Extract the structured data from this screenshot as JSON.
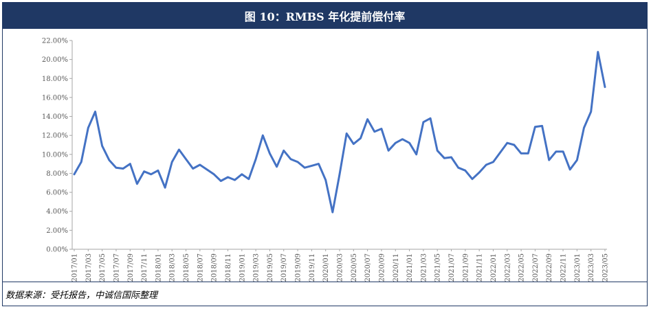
{
  "figure_title": "图 10：RMBS 年化提前偿付率",
  "source_note": "数据来源：受托报告，中诚信国际整理",
  "chart_data": {
    "type": "line",
    "title": "",
    "xlabel": "",
    "ylabel": "",
    "ylim": [
      0,
      22
    ],
    "y_ticks": [
      "0.00%",
      "2.00%",
      "4.00%",
      "6.00%",
      "8.00%",
      "10.00%",
      "12.00%",
      "14.00%",
      "16.00%",
      "18.00%",
      "20.00%",
      "22.00%"
    ],
    "x_tick_labels": [
      "2017/01",
      "2017/03",
      "2017/05",
      "2017/07",
      "2017/09",
      "2017/11",
      "2018/01",
      "2018/03",
      "2018/05",
      "2018/07",
      "2018/09",
      "2018/11",
      "2019/01",
      "2019/03",
      "2019/05",
      "2019/07",
      "2019/09",
      "2019/11",
      "2020/01",
      "2020/03",
      "2020/05",
      "2020/07",
      "2020/09",
      "2020/11",
      "2021/01",
      "2021/03",
      "2021/05",
      "2021/07",
      "2021/09",
      "2021/11",
      "2022/01",
      "2022/03",
      "2022/05",
      "2022/07",
      "2022/09",
      "2022/11",
      "2023/01",
      "2023/03",
      "2023/05"
    ],
    "series": [
      {
        "color": "#4472c4",
        "values": [
          7.9,
          9.2,
          12.8,
          14.5,
          10.9,
          9.4,
          8.6,
          8.5,
          9.0,
          6.9,
          8.2,
          7.9,
          8.3,
          6.5,
          9.2,
          10.5,
          9.5,
          8.5,
          8.9,
          8.4,
          7.9,
          7.2,
          7.6,
          7.3,
          7.9,
          7.4,
          9.5,
          12.0,
          10.1,
          8.7,
          10.4,
          9.5,
          9.2,
          8.6,
          8.8,
          9.0,
          7.3,
          3.9,
          7.9,
          12.2,
          11.1,
          11.7,
          13.7,
          12.4,
          12.7,
          10.4,
          11.2,
          11.6,
          11.2,
          10.0,
          13.4,
          13.8,
          10.4,
          9.6,
          9.7,
          8.6,
          8.3,
          7.4,
          8.1,
          8.9,
          9.2,
          10.2,
          11.2,
          11.0,
          10.1,
          10.1,
          12.9,
          13.0,
          9.4,
          10.3,
          10.3,
          8.4,
          9.4,
          12.8,
          14.5,
          20.8,
          17.1
        ]
      }
    ],
    "grid": false,
    "legend": "none"
  }
}
